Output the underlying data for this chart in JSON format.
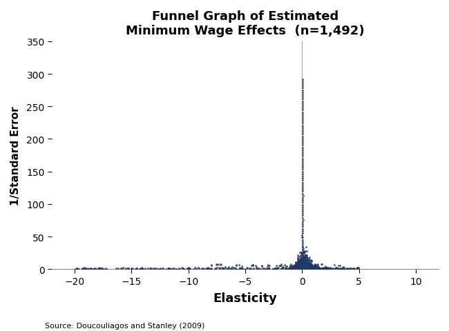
{
  "title_line1": "Funnel Graph of Estimated",
  "title_line2": "Minimum Wage Effects  (n=1,492)",
  "xlabel": "Elasticity",
  "ylabel": "1/Standard Error",
  "source_text": "Source: Doucouliagos and Stanley (2009)",
  "xlim": [
    -22,
    12
  ],
  "ylim": [
    0,
    350
  ],
  "yticks": [
    0,
    50,
    100,
    150,
    200,
    250,
    300,
    350
  ],
  "xticks": [
    -20,
    -15,
    -10,
    -5,
    0,
    5,
    10
  ],
  "n_points": 1492,
  "dot_color": "#1F3864",
  "vline_color": "#8899AA",
  "background_color": "#FFFFFF",
  "seed": 42,
  "figsize": [
    6.5,
    4.81
  ],
  "dpi": 100
}
